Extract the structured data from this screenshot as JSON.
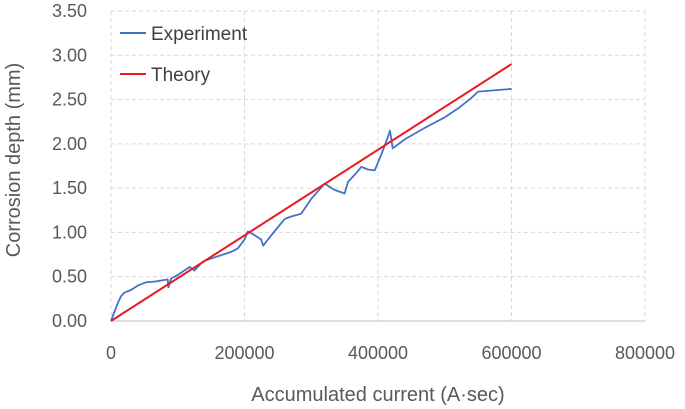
{
  "chart_data": {
    "type": "line",
    "xlabel": "Accumulated current (A·sec)",
    "ylabel": "Corrosion depth (mm)",
    "xlim": [
      0,
      800000
    ],
    "ylim": [
      0,
      3.5
    ],
    "x_ticks": [
      "0",
      "200000",
      "400000",
      "600000",
      "800000"
    ],
    "y_ticks": [
      "0.00",
      "0.50",
      "1.00",
      "1.50",
      "2.00",
      "2.50",
      "3.00",
      "3.50"
    ],
    "grid": "dashed",
    "legend_position": "top-left",
    "series": [
      {
        "name": "Experiment",
        "color": "#4472C4",
        "points": [
          [
            0,
            0.0
          ],
          [
            5000,
            0.1
          ],
          [
            10000,
            0.2
          ],
          [
            15000,
            0.28
          ],
          [
            20000,
            0.32
          ],
          [
            30000,
            0.35
          ],
          [
            40000,
            0.4
          ],
          [
            50000,
            0.43
          ],
          [
            55000,
            0.44
          ],
          [
            60000,
            0.44
          ],
          [
            70000,
            0.45
          ],
          [
            85000,
            0.47
          ],
          [
            86000,
            0.38
          ],
          [
            90000,
            0.48
          ],
          [
            100000,
            0.52
          ],
          [
            110000,
            0.57
          ],
          [
            118000,
            0.61
          ],
          [
            125000,
            0.57
          ],
          [
            135000,
            0.65
          ],
          [
            140000,
            0.68
          ],
          [
            160000,
            0.73
          ],
          [
            180000,
            0.78
          ],
          [
            190000,
            0.82
          ],
          [
            200000,
            0.92
          ],
          [
            205000,
            1.01
          ],
          [
            215000,
            0.97
          ],
          [
            225000,
            0.92
          ],
          [
            228000,
            0.85
          ],
          [
            235000,
            0.92
          ],
          [
            260000,
            1.15
          ],
          [
            270000,
            1.18
          ],
          [
            285000,
            1.21
          ],
          [
            300000,
            1.38
          ],
          [
            320000,
            1.55
          ],
          [
            335000,
            1.48
          ],
          [
            350000,
            1.44
          ],
          [
            355000,
            1.57
          ],
          [
            365000,
            1.65
          ],
          [
            375000,
            1.74
          ],
          [
            385000,
            1.71
          ],
          [
            395000,
            1.7
          ],
          [
            405000,
            1.88
          ],
          [
            415000,
            2.08
          ],
          [
            418000,
            2.15
          ],
          [
            422000,
            1.95
          ],
          [
            440000,
            2.05
          ],
          [
            470000,
            2.18
          ],
          [
            500000,
            2.3
          ],
          [
            520000,
            2.4
          ],
          [
            540000,
            2.52
          ],
          [
            550000,
            2.59
          ],
          [
            600000,
            2.62
          ]
        ]
      },
      {
        "name": "Theory",
        "color": "#E8191F",
        "points": [
          [
            0,
            0.0
          ],
          [
            600000,
            2.9
          ]
        ]
      }
    ]
  }
}
